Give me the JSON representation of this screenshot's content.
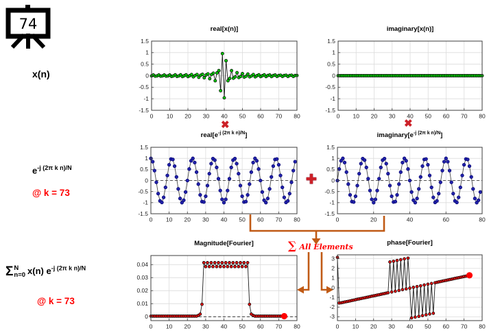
{
  "slide": {
    "number": "74"
  },
  "left_panel": {
    "signal_label": "x(n)",
    "exp_formula": {
      "base": "e",
      "sup": "-j (2π k n)/N"
    },
    "at_k_label_1": "@ k = 73",
    "sum_formula": {
      "sigma": "Σ",
      "sup": "N",
      "sub": "n=0",
      "body": "x(n) e",
      "exp_sup": "-j (2π k n)/N"
    },
    "at_k_label_2": "@ k = 73"
  },
  "operators": {
    "times_1": "✖",
    "times_2": "✖",
    "plus": "✚"
  },
  "annotations": {
    "sum_all": {
      "sigma": "∑",
      "text": "All Elements"
    }
  },
  "colors": {
    "accent_red": "#ff0000",
    "op_red": "#cc2128",
    "arrow_orange": "#c05a15",
    "marker_green": "#00c400",
    "marker_blue": "#2121aa",
    "marker_darkred": "#dd1111",
    "grid": "#dcdcdc"
  },
  "chart_data": [
    {
      "id": "real_xn",
      "type": "line",
      "title_parts": {
        "prefix": "real[x(n)]",
        "sup": "",
        "suffix": ""
      },
      "xlim": [
        0,
        80
      ],
      "xticks": [
        0,
        10,
        20,
        30,
        40,
        50,
        60,
        70,
        80
      ],
      "ylim": [
        -1.5,
        1.5
      ],
      "yticks": [
        -1.5,
        -1,
        -0.5,
        0,
        0.5,
        1,
        1.5
      ],
      "ytick_labels": [
        "-1.5",
        "-1",
        "-0.5",
        "0",
        "0.5",
        "1",
        "1.5"
      ],
      "x_start": 0,
      "dashed_zero": false,
      "big_dot": null,
      "marker_fill": "#00c400",
      "marker_edge": "#000000",
      "marker_r": 2.1,
      "line_color": "#1a1a1a",
      "values": [
        -0.01,
        0.03,
        -0.02,
        -0.01,
        0.03,
        -0.02,
        -0.01,
        0.03,
        -0.02,
        -0.01,
        0.03,
        -0.03,
        -0.01,
        0.04,
        -0.03,
        -0.01,
        0.04,
        -0.04,
        0.0,
        0.04,
        -0.04,
        0.0,
        0.05,
        -0.05,
        0.01,
        0.05,
        -0.07,
        0.02,
        0.06,
        -0.09,
        0.03,
        0.08,
        -0.13,
        0.05,
        0.11,
        -0.22,
        0.12,
        0.22,
        -0.65,
        0.96,
        -0.96,
        0.65,
        -0.22,
        -0.12,
        0.22,
        -0.11,
        -0.05,
        0.13,
        -0.08,
        -0.03,
        0.09,
        -0.06,
        -0.02,
        0.07,
        -0.05,
        -0.01,
        0.05,
        -0.05,
        0.0,
        0.04,
        -0.04,
        0.0,
        0.04,
        -0.04,
        0.01,
        0.03,
        -0.04,
        0.01,
        0.03,
        -0.03,
        0.01,
        0.02,
        -0.03,
        0.01,
        0.02,
        -0.03,
        0.01,
        0.02,
        -0.03,
        0.01,
        0.01
      ]
    },
    {
      "id": "imag_xn",
      "type": "line",
      "title_parts": {
        "prefix": "imaginary[x(n)]",
        "sup": "",
        "suffix": ""
      },
      "xlim": [
        0,
        80
      ],
      "xticks": [
        0,
        10,
        20,
        30,
        40,
        50,
        60,
        70,
        80
      ],
      "ylim": [
        -1.5,
        1.5
      ],
      "yticks": [
        -1.5,
        -1,
        -0.5,
        0,
        0.5,
        1,
        1.5
      ],
      "ytick_labels": [
        "-1.5",
        "-1",
        "-0.5",
        "0",
        "0.5",
        "1",
        "1.5"
      ],
      "x_start": 0,
      "dashed_zero": false,
      "big_dot": null,
      "marker_fill": "#00c400",
      "marker_edge": "#000000",
      "marker_r": 2.1,
      "line_color": "#1a1a1a",
      "values": [
        0,
        0,
        0,
        0,
        0,
        0,
        0,
        0,
        0,
        0,
        0,
        0,
        0,
        0,
        0,
        0,
        0,
        0,
        0,
        0,
        0,
        0,
        0,
        0,
        0,
        0,
        0,
        0,
        0,
        0,
        0,
        0,
        0,
        0,
        0,
        0,
        0,
        0,
        0,
        0,
        0,
        0,
        0,
        0,
        0,
        0,
        0,
        0,
        0,
        0,
        0,
        0,
        0,
        0,
        0,
        0,
        0,
        0,
        0,
        0,
        0,
        0,
        0,
        0,
        0,
        0,
        0,
        0,
        0,
        0,
        0,
        0,
        0,
        0,
        0,
        0,
        0,
        0,
        0,
        0,
        0
      ]
    },
    {
      "id": "real_e",
      "type": "line",
      "title_parts": {
        "prefix": "real[e",
        "sup": "-j (2π k n)/N",
        "suffix": "]"
      },
      "xlim": [
        0,
        80
      ],
      "xticks": [
        0,
        10,
        20,
        30,
        40,
        50,
        60,
        70,
        80
      ],
      "ylim": [
        -1.5,
        1.5
      ],
      "yticks": [
        -1.5,
        -1,
        -0.5,
        0,
        0.5,
        1,
        1.5
      ],
      "ytick_labels": [
        "-1.5",
        "-1",
        "-0.5",
        "0",
        "0.5",
        "1",
        "1.5"
      ],
      "x_start": 0,
      "dashed_zero": true,
      "big_dot": null,
      "marker_fill": "#2121aa",
      "marker_edge": "#00006a",
      "marker_r": 2.3,
      "line_color": "#4a4a4a",
      "values": [
        1.0,
        0.85,
        0.45,
        -0.08,
        -0.59,
        -0.92,
        -0.99,
        -0.76,
        -0.31,
        0.23,
        0.71,
        0.97,
        0.95,
        0.65,
        0.16,
        -0.38,
        -0.81,
        -1.0,
        -0.89,
        -0.52,
        0.0,
        0.52,
        0.89,
        1.0,
        0.81,
        0.38,
        -0.16,
        -0.65,
        -0.95,
        -0.97,
        -0.71,
        -0.23,
        0.31,
        0.76,
        0.99,
        0.92,
        0.59,
        0.08,
        -0.45,
        -0.85,
        -1.0,
        -0.85,
        -0.45,
        0.08,
        0.59,
        0.92,
        0.99,
        0.76,
        0.31,
        -0.23,
        -0.71,
        -0.97,
        -0.95,
        -0.65,
        -0.16,
        0.38,
        0.81,
        1.0,
        0.89,
        0.52,
        0.0,
        -0.52,
        -0.89,
        -1.0,
        -0.81,
        -0.38,
        0.16,
        0.65,
        0.95,
        0.97,
        0.71,
        0.23,
        -0.31,
        -0.76,
        -0.99,
        -0.92,
        -0.59,
        -0.08,
        0.45,
        0.85
      ]
    },
    {
      "id": "imag_e",
      "type": "line",
      "title_parts": {
        "prefix": "imaginary[e",
        "sup": "-j (2π k n)/N",
        "suffix": "]"
      },
      "xlim": [
        0,
        80
      ],
      "xticks": [
        0,
        20,
        40,
        60,
        80
      ],
      "ylim": [
        -1.5,
        1.5
      ],
      "yticks": [
        -1.5,
        -1,
        -0.5,
        0,
        0.5,
        1,
        1.5
      ],
      "ytick_labels": [
        "-1.5",
        "-1",
        "-0.5",
        "0",
        "0.5",
        "1",
        "1.5"
      ],
      "x_start": 0,
      "dashed_zero": true,
      "big_dot": null,
      "marker_fill": "#2121aa",
      "marker_edge": "#00006a",
      "marker_r": 2.3,
      "line_color": "#4a4a4a",
      "values": [
        0.0,
        0.52,
        0.89,
        1.0,
        0.81,
        0.38,
        -0.16,
        -0.65,
        -0.95,
        -0.97,
        -0.71,
        -0.23,
        0.31,
        0.76,
        0.99,
        0.92,
        0.59,
        0.08,
        -0.45,
        -0.85,
        -1.0,
        -0.85,
        -0.45,
        0.08,
        0.59,
        0.92,
        0.99,
        0.76,
        0.31,
        -0.23,
        -0.71,
        -0.97,
        -0.95,
        -0.65,
        -0.16,
        0.38,
        0.81,
        1.0,
        0.89,
        0.52,
        0.0,
        -0.52,
        -0.89,
        -1.0,
        -0.81,
        -0.38,
        0.16,
        0.65,
        0.95,
        0.97,
        0.71,
        0.23,
        -0.31,
        -0.76,
        -0.99,
        -0.92,
        -0.59,
        -0.08,
        0.45,
        0.85,
        1.0,
        0.85,
        0.45,
        -0.08,
        -0.59,
        -0.92,
        -0.99,
        -0.76,
        -0.31,
        0.23,
        0.71,
        0.97,
        0.95,
        0.65,
        0.16,
        -0.38,
        -0.81,
        -1.0,
        -0.89,
        -0.52
      ]
    },
    {
      "id": "mag",
      "type": "line",
      "title_parts": {
        "prefix": "Magnitude[Fourier]",
        "sup": "",
        "suffix": ""
      },
      "xlim": [
        0,
        80
      ],
      "xticks": [
        0,
        10,
        20,
        30,
        40,
        50,
        60,
        70,
        80
      ],
      "ylim": [
        -0.003,
        0.047
      ],
      "yticks": [
        0,
        0.01,
        0.02,
        0.03,
        0.04
      ],
      "ytick_labels": [
        "0",
        "0.01",
        "0.02",
        "0.03",
        "0.04"
      ],
      "x_start": 0,
      "dashed_zero": true,
      "big_dot": {
        "x": 73,
        "y": 0.0004
      },
      "marker_fill": "#dd1111",
      "marker_edge": "#000000",
      "marker_r": 2.0,
      "line_color": "#1a1a1a",
      "values": [
        0.0004,
        0.0004,
        0.0004,
        0.0004,
        0.0004,
        0.0004,
        0.0004,
        0.0004,
        0.0004,
        0.0004,
        0.0004,
        0.0004,
        0.0004,
        0.0004,
        0.0004,
        0.0004,
        0.0004,
        0.0004,
        0.0004,
        0.0004,
        0.0004,
        0.0004,
        0.0004,
        0.0004,
        0.0004,
        0.0004,
        0.001,
        0.002,
        0.0095,
        0.0415,
        0.0385,
        0.0415,
        0.0385,
        0.0415,
        0.0385,
        0.0415,
        0.0385,
        0.0415,
        0.0385,
        0.0415,
        0.0385,
        0.0415,
        0.0385,
        0.0415,
        0.0385,
        0.0415,
        0.0385,
        0.0415,
        0.0385,
        0.0415,
        0.0385,
        0.0415,
        0.0385,
        0.0415,
        0.0095,
        0.002,
        0.001,
        0.0004,
        0.0004,
        0.0004,
        0.0004,
        0.0004,
        0.0004,
        0.0004,
        0.0004,
        0.0004,
        0.0004,
        0.0004,
        0.0004,
        0.0004,
        0.0004,
        0.0004,
        0.0004,
        0.0004
      ]
    },
    {
      "id": "phase",
      "type": "line",
      "title_parts": {
        "prefix": "phase[Fourier]",
        "sup": "",
        "suffix": ""
      },
      "xlim": [
        0,
        80
      ],
      "xticks": [
        0,
        10,
        20,
        30,
        40,
        50,
        60,
        70,
        80
      ],
      "ylim": [
        -3.4,
        3.4
      ],
      "yticks": [
        -3,
        -2,
        -1,
        0,
        1,
        2,
        3
      ],
      "ytick_labels": [
        "-3",
        "-2",
        "-1",
        "0",
        "1",
        "2",
        "3"
      ],
      "x_start": 0,
      "dashed_zero": false,
      "big_dot": {
        "x": 73,
        "y": 1.28
      },
      "marker_fill": "#dd1111",
      "marker_edge": "#000000",
      "marker_r": 2.0,
      "line_color": "#1a1a1a",
      "values": [
        3.14,
        -1.58,
        -1.56,
        -1.52,
        -1.48,
        -1.44,
        -1.4,
        -1.36,
        -1.32,
        -1.28,
        -1.24,
        -1.2,
        -1.16,
        -1.12,
        -1.08,
        -1.04,
        -1.0,
        -0.96,
        -0.92,
        -0.88,
        -0.84,
        -0.8,
        -0.76,
        -0.72,
        -0.68,
        -0.64,
        -0.6,
        -0.56,
        -0.52,
        2.66,
        -0.44,
        2.74,
        -0.36,
        2.82,
        -0.28,
        2.9,
        -0.2,
        2.98,
        -0.12,
        3.06,
        -0.04,
        -3.12,
        0.04,
        -3.04,
        0.12,
        -2.96,
        0.2,
        -2.88,
        0.28,
        -2.8,
        0.36,
        -2.72,
        0.44,
        -2.64,
        0.52,
        0.56,
        0.6,
        0.64,
        0.68,
        0.72,
        0.76,
        0.8,
        0.84,
        0.88,
        0.92,
        0.96,
        1.0,
        1.04,
        1.08,
        1.12,
        1.16,
        1.2,
        1.24,
        1.28
      ]
    }
  ]
}
